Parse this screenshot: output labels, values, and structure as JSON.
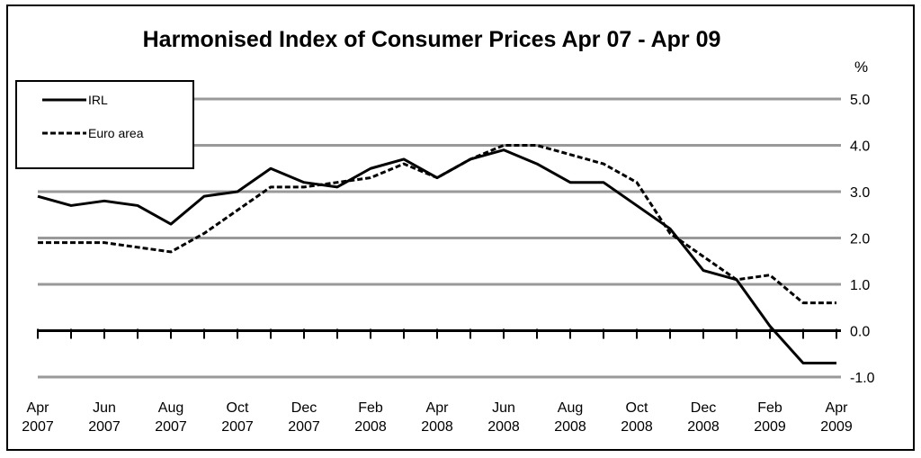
{
  "chart_data": {
    "type": "line",
    "title": "Harmonised Index of Consumer Prices  Apr 07 - Apr 09",
    "y_label": "%",
    "categories": [
      "Apr 2007",
      null,
      "Jun 2007",
      null,
      "Aug 2007",
      null,
      "Oct 2007",
      null,
      "Dec 2007",
      null,
      "Feb 2008",
      null,
      "Apr 2008",
      null,
      "Jun 2008",
      null,
      "Aug 2008",
      null,
      "Oct 2008",
      null,
      "Dec 2008",
      null,
      "Feb 2009",
      null,
      "Apr 2009"
    ],
    "series": [
      {
        "name": "IRL",
        "color": "#000000",
        "dash": false,
        "values": [
          2.9,
          2.7,
          2.8,
          2.7,
          2.3,
          2.9,
          3.0,
          3.5,
          3.2,
          3.1,
          3.5,
          3.7,
          3.3,
          3.7,
          3.9,
          3.6,
          3.2,
          3.2,
          2.7,
          2.2,
          1.3,
          1.1,
          0.1,
          -0.7,
          -0.7
        ]
      },
      {
        "name": "Euro area",
        "color": "#000000",
        "dash": true,
        "values": [
          1.9,
          1.9,
          1.9,
          1.8,
          1.7,
          2.1,
          2.6,
          3.1,
          3.1,
          3.2,
          3.3,
          3.6,
          3.3,
          3.7,
          4.0,
          4.0,
          3.8,
          3.6,
          3.2,
          2.1,
          1.6,
          1.1,
          1.2,
          0.6,
          0.6
        ]
      }
    ],
    "ylim": [
      -1,
      5
    ],
    "yticks": [
      {
        "value": -1,
        "label": "-1.0"
      },
      {
        "value": 0,
        "label": "0.0"
      },
      {
        "value": 1,
        "label": "1.0"
      },
      {
        "value": 2,
        "label": "2.0"
      },
      {
        "value": 3,
        "label": "3.0"
      },
      {
        "value": 4,
        "label": "4.0"
      },
      {
        "value": 5,
        "label": "5.0"
      }
    ],
    "grid": true,
    "legend_position": "upper left"
  }
}
